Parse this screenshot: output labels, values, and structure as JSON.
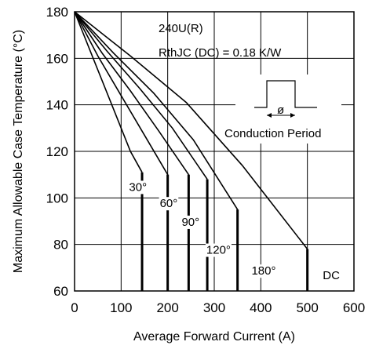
{
  "chart_data": {
    "type": "line",
    "title": "",
    "xlabel": "Average Forward Current (A)",
    "ylabel": "Maximum Allowable Case Temperature (°C)",
    "xlim": [
      0,
      600
    ],
    "ylim": [
      60,
      180
    ],
    "xticks": [
      "0",
      "100",
      "200",
      "300",
      "400",
      "500",
      "600"
    ],
    "yticks": [
      "60",
      "80",
      "100",
      "120",
      "140",
      "160",
      "180"
    ],
    "grid": true,
    "annotations": {
      "device": "240U(R)",
      "rth": "RthJC (DC) = 0.18 K/W",
      "inset_symbol": "ø",
      "inset_caption": "Conduction Period"
    },
    "series": [
      {
        "name": "30°",
        "x": [
          0,
          40,
          80,
          120,
          145
        ],
        "y": [
          180,
          160,
          140,
          120,
          111
        ],
        "drop_x": 145
      },
      {
        "name": "60°",
        "x": [
          0,
          50,
          100,
          150,
          200
        ],
        "y": [
          180,
          161,
          144,
          127,
          110
        ],
        "drop_x": 200
      },
      {
        "name": "90°",
        "x": [
          0,
          60,
          120,
          180,
          245
        ],
        "y": [
          180,
          162,
          146,
          129,
          110
        ],
        "drop_x": 245
      },
      {
        "name": "120°",
        "x": [
          0,
          70,
          140,
          210,
          285
        ],
        "y": [
          180,
          163,
          147,
          130,
          108
        ],
        "drop_x": 285
      },
      {
        "name": "180°",
        "x": [
          0,
          85,
          170,
          255,
          350
        ],
        "y": [
          180,
          162,
          145,
          125,
          95
        ],
        "drop_x": 350
      },
      {
        "name": "DC",
        "x": [
          0,
          120,
          240,
          360,
          500
        ],
        "y": [
          180,
          161,
          141,
          114,
          78
        ],
        "drop_x": 500
      }
    ],
    "series_label_positions": [
      {
        "x": 117,
        "y": 103
      },
      {
        "x": 183,
        "y": 96
      },
      {
        "x": 230,
        "y": 88
      },
      {
        "x": 283,
        "y": 76
      },
      {
        "x": 380,
        "y": 67
      },
      {
        "x": 533,
        "y": 65
      }
    ]
  }
}
